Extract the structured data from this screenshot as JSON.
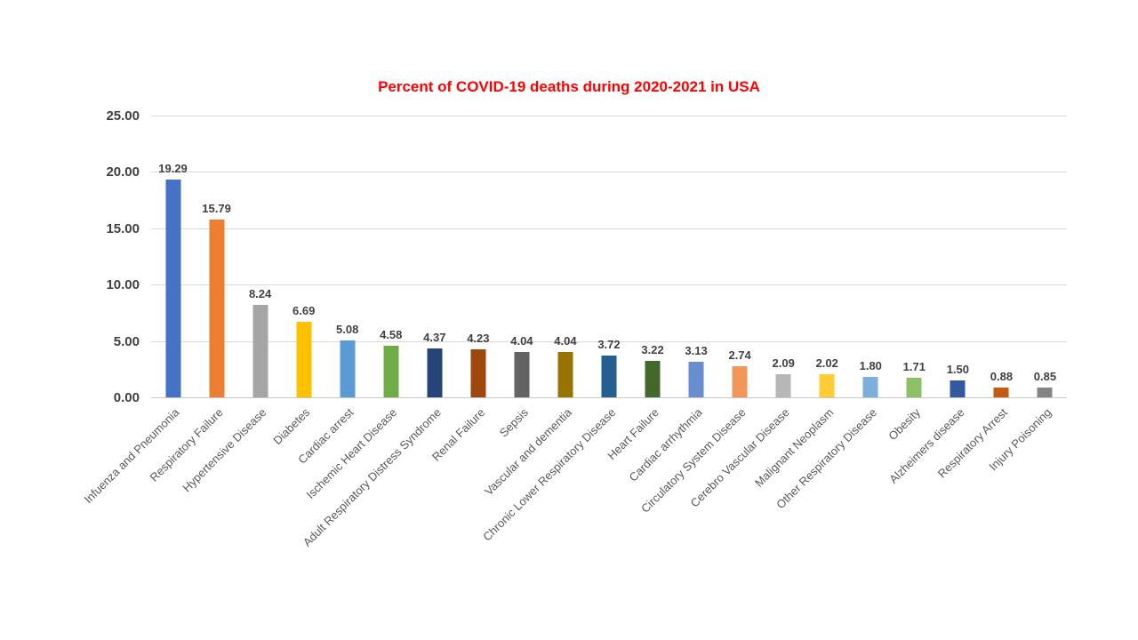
{
  "chart_data": {
    "type": "bar",
    "title": "Percent of COVID-19 deaths during 2020-2021 in USA",
    "title_color": "#FF0000",
    "categories": [
      "Infuenza and Pneumonia",
      "Respiratory Failure",
      "Hypertensive Disease",
      "Diabetes",
      "Cardiac arrest",
      "Ischemic Heart Disease",
      "Adult Respiratory Distress Syndrome",
      "Renal Failure",
      "Sepsis",
      "Vascular and dementia",
      "Chronic Lower Respiratory Disease",
      "Heart Failure",
      "Cardiac arrhythmia",
      "Circulatory System Disease",
      "Cerebro Vascular Disease",
      "Malignant Neoplasm",
      "Other Respiratory Disease",
      "Obesity",
      "Alzheimers disease",
      "Respiratory Arrest",
      "Injury Poisoning"
    ],
    "values": [
      19.29,
      15.79,
      8.24,
      6.69,
      5.08,
      4.58,
      4.37,
      4.23,
      4.04,
      4.04,
      3.72,
      3.22,
      3.13,
      2.74,
      2.09,
      2.02,
      1.8,
      1.71,
      1.5,
      0.88,
      0.85
    ],
    "bar_colors": [
      "#4472C4",
      "#ED7D31",
      "#A5A5A5",
      "#FFC000",
      "#5B9BD5",
      "#70AD47",
      "#264478",
      "#9E480E",
      "#636363",
      "#997300",
      "#255E91",
      "#43682B",
      "#698ED0",
      "#F1975A",
      "#B7B7B7",
      "#FFCD33",
      "#7CAFDD",
      "#8CC168",
      "#33599E",
      "#C55A11",
      "#848484"
    ],
    "xlabel": "",
    "ylabel": "",
    "ylim": [
      0,
      25
    ],
    "yticks": [
      0,
      5,
      10,
      15,
      20,
      25
    ],
    "ytick_labels": [
      "0.00",
      "5.00",
      "10.00",
      "15.00",
      "20.00",
      "25.00"
    ],
    "grid": true,
    "legend": "none",
    "colors": {
      "gridline": "#D9D9D9",
      "axis_line": "#C6C6C6",
      "tick_label": "#404040",
      "value_label": "#404040",
      "category_label": "#595959",
      "background": "#FFFFFF"
    }
  }
}
